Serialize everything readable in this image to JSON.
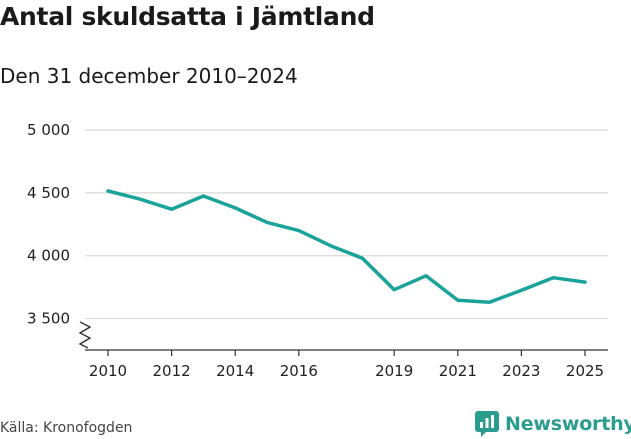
{
  "header": {
    "title": "Antal skuldsatta i Jämtland",
    "subtitle": "Den 31 december 2010–2024"
  },
  "footer": {
    "source": "Källa: Kronofogden",
    "brand": "Newsworthy",
    "brand_icon": "newsworthy-logo-icon"
  },
  "colors": {
    "line": "#1aa39a",
    "grid": "#d9d9d9",
    "axis": "#333333",
    "brand": "#2a9d8f"
  },
  "chart_data": {
    "type": "line",
    "title": "Antal skuldsatta i Jämtland",
    "subtitle": "Den 31 december 2010–2024",
    "xlabel": "",
    "ylabel": "",
    "x": [
      2010,
      2011,
      2012,
      2013,
      2014,
      2015,
      2016,
      2017,
      2018,
      2019,
      2020,
      2021,
      2022,
      2023,
      2024,
      2025
    ],
    "series": [
      {
        "name": "Antal skuldsatta",
        "values": [
          4515,
          4450,
          4370,
          4475,
          4380,
          4265,
          4200,
          4080,
          3980,
          3730,
          3840,
          3645,
          3630,
          3725,
          3825,
          3790
        ]
      }
    ],
    "ylim": [
      3250,
      5000
    ],
    "yticks": [
      3500,
      4000,
      4500,
      5000
    ],
    "ytick_labels": [
      "3 500",
      "4 000",
      "4 500",
      "5 000"
    ],
    "xticks": [
      2010,
      2012,
      2014,
      2016,
      2019,
      2021,
      2023,
      2025
    ],
    "xtick_labels": [
      "2010",
      "2012",
      "2014",
      "2016",
      "2019",
      "2021",
      "2023",
      "2025"
    ],
    "grid": true,
    "axis_break": true
  }
}
